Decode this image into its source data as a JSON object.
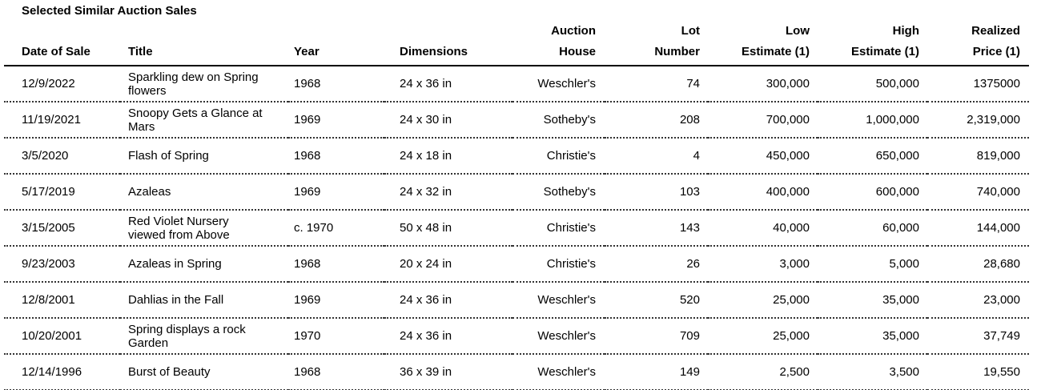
{
  "page": {
    "title": "Selected Similar Auction Sales"
  },
  "table": {
    "headers": [
      "Date of Sale",
      "Title",
      "Year",
      "Dimensions",
      "Auction\nHouse",
      "Lot\nNumber",
      "Low\nEstimate (1)",
      "High\nEstimate (1)",
      "Realized\nPrice (1)"
    ],
    "rows": [
      [
        "12/9/2022",
        "Sparkling dew on Spring\nflowers",
        "1968",
        "24 x 36 in",
        "Weschler's",
        "74",
        "300,000",
        "500,000",
        "1375000"
      ],
      [
        "11/19/2021",
        "Snoopy Gets a Glance at\nMars",
        "1969",
        "24 x 30 in",
        "Sotheby's",
        "208",
        "700,000",
        "1,000,000",
        "2,319,000"
      ],
      [
        "3/5/2020",
        "Flash of Spring",
        "1968",
        "24 x 18 in",
        "Christie's",
        "4",
        "450,000",
        "650,000",
        "819,000"
      ],
      [
        "5/17/2019",
        "Azaleas",
        "1969",
        "24 x 32 in",
        "Sotheby's",
        "103",
        "400,000",
        "600,000",
        "740,000"
      ],
      [
        "3/15/2005",
        "Red Violet Nursery\nviewed from Above",
        "c. 1970",
        "50 x 48 in",
        "Christie's",
        "143",
        "40,000",
        "60,000",
        "144,000"
      ],
      [
        "9/23/2003",
        "Azaleas in Spring",
        "1968",
        "20 x 24 in",
        "Christie's",
        "26",
        "3,000",
        "5,000",
        "28,680"
      ],
      [
        "12/8/2001",
        "Dahlias in the Fall",
        "1969",
        "24 x 36 in",
        "Weschler's",
        "520",
        "25,000",
        "35,000",
        "23,000"
      ],
      [
        "10/20/2001",
        "Spring displays a rock\nGarden",
        "1970",
        "24 x 36 in",
        "Weschler's",
        "709",
        "25,000",
        "35,000",
        "37,749"
      ],
      [
        "12/14/1996",
        "Burst of Beauty",
        "1968",
        "36 x 39 in",
        "Weschler's",
        "149",
        "2,500",
        "3,500",
        "19,550"
      ]
    ]
  }
}
